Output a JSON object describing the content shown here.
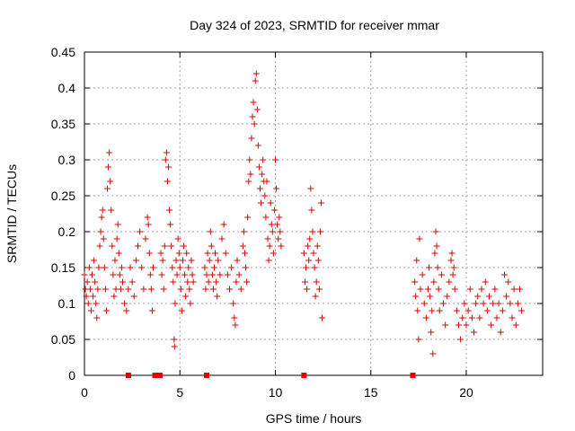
{
  "chart_data": {
    "type": "scatter",
    "title": "Day 324 of 2023, SRMTID for receiver mmar",
    "xlabel": "GPS time / hours",
    "ylabel": "SRMTID / TECUs",
    "xlim": [
      0,
      24
    ],
    "ylim": [
      0,
      0.45
    ],
    "x_ticks": [
      0,
      5,
      10,
      15,
      20
    ],
    "x_tick_labels": [
      "0",
      "5",
      "10",
      "15",
      "20"
    ],
    "y_ticks": [
      0,
      0.05,
      0.1,
      0.15,
      0.2,
      0.25,
      0.3,
      0.35,
      0.4,
      0.45
    ],
    "y_tick_labels": [
      "0",
      "0.05",
      "0.1",
      "0.15",
      "0.2",
      "0.25",
      "0.3",
      "0.35",
      "0.4",
      "0.45"
    ],
    "grid": true,
    "marker": "plus",
    "color": "#e00000",
    "zero_markers_x": [
      2.3,
      3.7,
      3.95,
      6.4,
      11.5,
      17.2
    ],
    "series": [
      {
        "name": "SRMTID",
        "points": [
          [
            0.0,
            0.14
          ],
          [
            0.05,
            0.12
          ],
          [
            0.1,
            0.11
          ],
          [
            0.15,
            0.13
          ],
          [
            0.2,
            0.1
          ],
          [
            0.25,
            0.15
          ],
          [
            0.3,
            0.12
          ],
          [
            0.35,
            0.09
          ],
          [
            0.4,
            0.14
          ],
          [
            0.45,
            0.11
          ],
          [
            0.5,
            0.16
          ],
          [
            0.55,
            0.13
          ],
          [
            0.6,
            0.1
          ],
          [
            0.65,
            0.08
          ],
          [
            0.7,
            0.12
          ],
          [
            0.75,
            0.15
          ],
          [
            0.8,
            0.18
          ],
          [
            0.85,
            0.2
          ],
          [
            0.9,
            0.22
          ],
          [
            0.95,
            0.23
          ],
          [
            1.0,
            0.19
          ],
          [
            1.05,
            0.15
          ],
          [
            1.1,
            0.12
          ],
          [
            1.15,
            0.09
          ],
          [
            1.2,
            0.26
          ],
          [
            1.25,
            0.29
          ],
          [
            1.3,
            0.31
          ],
          [
            1.35,
            0.27
          ],
          [
            1.4,
            0.23
          ],
          [
            1.45,
            0.18
          ],
          [
            1.5,
            0.14
          ],
          [
            1.55,
            0.11
          ],
          [
            1.6,
            0.16
          ],
          [
            1.65,
            0.12
          ],
          [
            1.7,
            0.19
          ],
          [
            1.75,
            0.21
          ],
          [
            1.8,
            0.17
          ],
          [
            1.85,
            0.14
          ],
          [
            1.9,
            0.12
          ],
          [
            1.95,
            0.15
          ],
          [
            2.0,
            0.13
          ],
          [
            2.1,
            0.1
          ],
          [
            2.2,
            0.09
          ],
          [
            2.3,
            0.12
          ],
          [
            2.4,
            0.15
          ],
          [
            2.5,
            0.13
          ],
          [
            2.6,
            0.11
          ],
          [
            2.7,
            0.16
          ],
          [
            2.8,
            0.18
          ],
          [
            2.9,
            0.2
          ],
          [
            3.0,
            0.15
          ],
          [
            3.1,
            0.12
          ],
          [
            3.2,
            0.19
          ],
          [
            3.3,
            0.22
          ],
          [
            3.35,
            0.21
          ],
          [
            3.4,
            0.17
          ],
          [
            3.45,
            0.14
          ],
          [
            3.5,
            0.12
          ],
          [
            3.55,
            0.09
          ],
          [
            3.6,
            0.15
          ],
          [
            4.0,
            0.17
          ],
          [
            4.05,
            0.14
          ],
          [
            4.1,
            0.16
          ],
          [
            4.15,
            0.12
          ],
          [
            4.2,
            0.18
          ],
          [
            4.25,
            0.3
          ],
          [
            4.3,
            0.31
          ],
          [
            4.35,
            0.27
          ],
          [
            4.4,
            0.29
          ],
          [
            4.45,
            0.23
          ],
          [
            4.5,
            0.21
          ],
          [
            4.55,
            0.18
          ],
          [
            4.6,
            0.15
          ],
          [
            4.65,
            0.13
          ],
          [
            4.7,
            0.05
          ],
          [
            4.72,
            0.04
          ],
          [
            4.75,
            0.1
          ],
          [
            4.8,
            0.16
          ],
          [
            4.85,
            0.14
          ],
          [
            4.9,
            0.19
          ],
          [
            4.95,
            0.17
          ],
          [
            5.0,
            0.15
          ],
          [
            5.05,
            0.12
          ],
          [
            5.1,
            0.09
          ],
          [
            5.15,
            0.16
          ],
          [
            5.2,
            0.18
          ],
          [
            5.25,
            0.14
          ],
          [
            5.3,
            0.11
          ],
          [
            5.35,
            0.17
          ],
          [
            5.4,
            0.13
          ],
          [
            5.45,
            0.15
          ],
          [
            5.5,
            0.12
          ],
          [
            5.55,
            0.1
          ],
          [
            5.6,
            0.16
          ],
          [
            5.65,
            0.14
          ],
          [
            5.7,
            0.13
          ],
          [
            6.3,
            0.15
          ],
          [
            6.35,
            0.12
          ],
          [
            6.4,
            0.14
          ],
          [
            6.45,
            0.17
          ],
          [
            6.5,
            0.13
          ],
          [
            6.55,
            0.16
          ],
          [
            6.6,
            0.2
          ],
          [
            6.65,
            0.18
          ],
          [
            6.7,
            0.14
          ],
          [
            6.75,
            0.12
          ],
          [
            6.8,
            0.15
          ],
          [
            6.85,
            0.17
          ],
          [
            6.9,
            0.13
          ],
          [
            6.95,
            0.11
          ],
          [
            7.0,
            0.16
          ],
          [
            7.1,
            0.14
          ],
          [
            7.2,
            0.19
          ],
          [
            7.3,
            0.21
          ],
          [
            7.4,
            0.17
          ],
          [
            7.5,
            0.14
          ],
          [
            7.6,
            0.12
          ],
          [
            7.7,
            0.15
          ],
          [
            7.8,
            0.1
          ],
          [
            7.85,
            0.08
          ],
          [
            7.9,
            0.07
          ],
          [
            7.95,
            0.13
          ],
          [
            8.0,
            0.16
          ],
          [
            8.1,
            0.14
          ],
          [
            8.2,
            0.12
          ],
          [
            8.3,
            0.18
          ],
          [
            8.35,
            0.2
          ],
          [
            8.4,
            0.17
          ],
          [
            8.45,
            0.15
          ],
          [
            8.5,
            0.13
          ],
          [
            8.55,
            0.22
          ],
          [
            8.6,
            0.27
          ],
          [
            8.65,
            0.3
          ],
          [
            8.7,
            0.28
          ],
          [
            8.75,
            0.33
          ],
          [
            8.8,
            0.36
          ],
          [
            8.85,
            0.38
          ],
          [
            8.9,
            0.35
          ],
          [
            8.95,
            0.41
          ],
          [
            9.0,
            0.42
          ],
          [
            9.05,
            0.37
          ],
          [
            9.1,
            0.32
          ],
          [
            9.15,
            0.29
          ],
          [
            9.2,
            0.26
          ],
          [
            9.25,
            0.24
          ],
          [
            9.3,
            0.28
          ],
          [
            9.35,
            0.3
          ],
          [
            9.4,
            0.27
          ],
          [
            9.45,
            0.25
          ],
          [
            9.5,
            0.22
          ],
          [
            9.55,
            0.27
          ],
          [
            9.6,
            0.19
          ],
          [
            9.65,
            0.16
          ],
          [
            9.7,
            0.18
          ],
          [
            9.75,
            0.24
          ],
          [
            9.8,
            0.21
          ],
          [
            9.85,
            0.2
          ],
          [
            9.9,
            0.17
          ],
          [
            9.95,
            0.23
          ],
          [
            10.0,
            0.3
          ],
          [
            10.05,
            0.26
          ],
          [
            10.1,
            0.21
          ],
          [
            10.15,
            0.19
          ],
          [
            10.2,
            0.22
          ],
          [
            10.25,
            0.2
          ],
          [
            10.3,
            0.18
          ],
          [
            11.5,
            0.17
          ],
          [
            11.55,
            0.13
          ],
          [
            11.6,
            0.15
          ],
          [
            11.65,
            0.12
          ],
          [
            11.7,
            0.18
          ],
          [
            11.75,
            0.16
          ],
          [
            11.8,
            0.19
          ],
          [
            11.85,
            0.26
          ],
          [
            11.9,
            0.23
          ],
          [
            11.95,
            0.2
          ],
          [
            12.0,
            0.17
          ],
          [
            12.05,
            0.15
          ],
          [
            12.1,
            0.11
          ],
          [
            12.15,
            0.13
          ],
          [
            12.2,
            0.18
          ],
          [
            12.25,
            0.16
          ],
          [
            12.3,
            0.12
          ],
          [
            12.35,
            0.2
          ],
          [
            12.4,
            0.24
          ],
          [
            12.45,
            0.08
          ],
          [
            17.3,
            0.13
          ],
          [
            17.35,
            0.11
          ],
          [
            17.4,
            0.16
          ],
          [
            17.45,
            0.09
          ],
          [
            17.5,
            0.05
          ],
          [
            17.55,
            0.19
          ],
          [
            17.6,
            0.12
          ],
          [
            17.7,
            0.14
          ],
          [
            17.8,
            0.1
          ],
          [
            17.9,
            0.08
          ],
          [
            18.0,
            0.12
          ],
          [
            18.05,
            0.15
          ],
          [
            18.1,
            0.11
          ],
          [
            18.15,
            0.06
          ],
          [
            18.2,
            0.09
          ],
          [
            18.25,
            0.03
          ],
          [
            18.3,
            0.13
          ],
          [
            18.35,
            0.17
          ],
          [
            18.4,
            0.2
          ],
          [
            18.45,
            0.18
          ],
          [
            18.5,
            0.15
          ],
          [
            18.55,
            0.12
          ],
          [
            18.6,
            0.09
          ],
          [
            18.7,
            0.14
          ],
          [
            18.8,
            0.1
          ],
          [
            18.9,
            0.07
          ],
          [
            19.0,
            0.11
          ],
          [
            19.1,
            0.13
          ],
          [
            19.2,
            0.16
          ],
          [
            19.25,
            0.17
          ],
          [
            19.3,
            0.14
          ],
          [
            19.35,
            0.15
          ],
          [
            19.4,
            0.12
          ],
          [
            19.5,
            0.09
          ],
          [
            19.6,
            0.07
          ],
          [
            19.7,
            0.05
          ],
          [
            19.8,
            0.08
          ],
          [
            19.9,
            0.1
          ],
          [
            20.0,
            0.07
          ],
          [
            20.1,
            0.09
          ],
          [
            20.2,
            0.12
          ],
          [
            20.3,
            0.08
          ],
          [
            20.4,
            0.06
          ],
          [
            20.5,
            0.1
          ],
          [
            20.6,
            0.11
          ],
          [
            20.7,
            0.08
          ],
          [
            20.8,
            0.12
          ],
          [
            20.9,
            0.1
          ],
          [
            21.0,
            0.13
          ],
          [
            21.1,
            0.09
          ],
          [
            21.2,
            0.11
          ],
          [
            21.3,
            0.07
          ],
          [
            21.4,
            0.1
          ],
          [
            21.5,
            0.12
          ],
          [
            21.6,
            0.08
          ],
          [
            21.7,
            0.1
          ],
          [
            21.8,
            0.06
          ],
          [
            21.9,
            0.09
          ],
          [
            22.0,
            0.14
          ],
          [
            22.1,
            0.11
          ],
          [
            22.2,
            0.13
          ],
          [
            22.3,
            0.1
          ],
          [
            22.4,
            0.08
          ],
          [
            22.5,
            0.12
          ],
          [
            22.6,
            0.07
          ],
          [
            22.7,
            0.1
          ],
          [
            22.8,
            0.12
          ],
          [
            22.9,
            0.09
          ]
        ]
      }
    ]
  }
}
